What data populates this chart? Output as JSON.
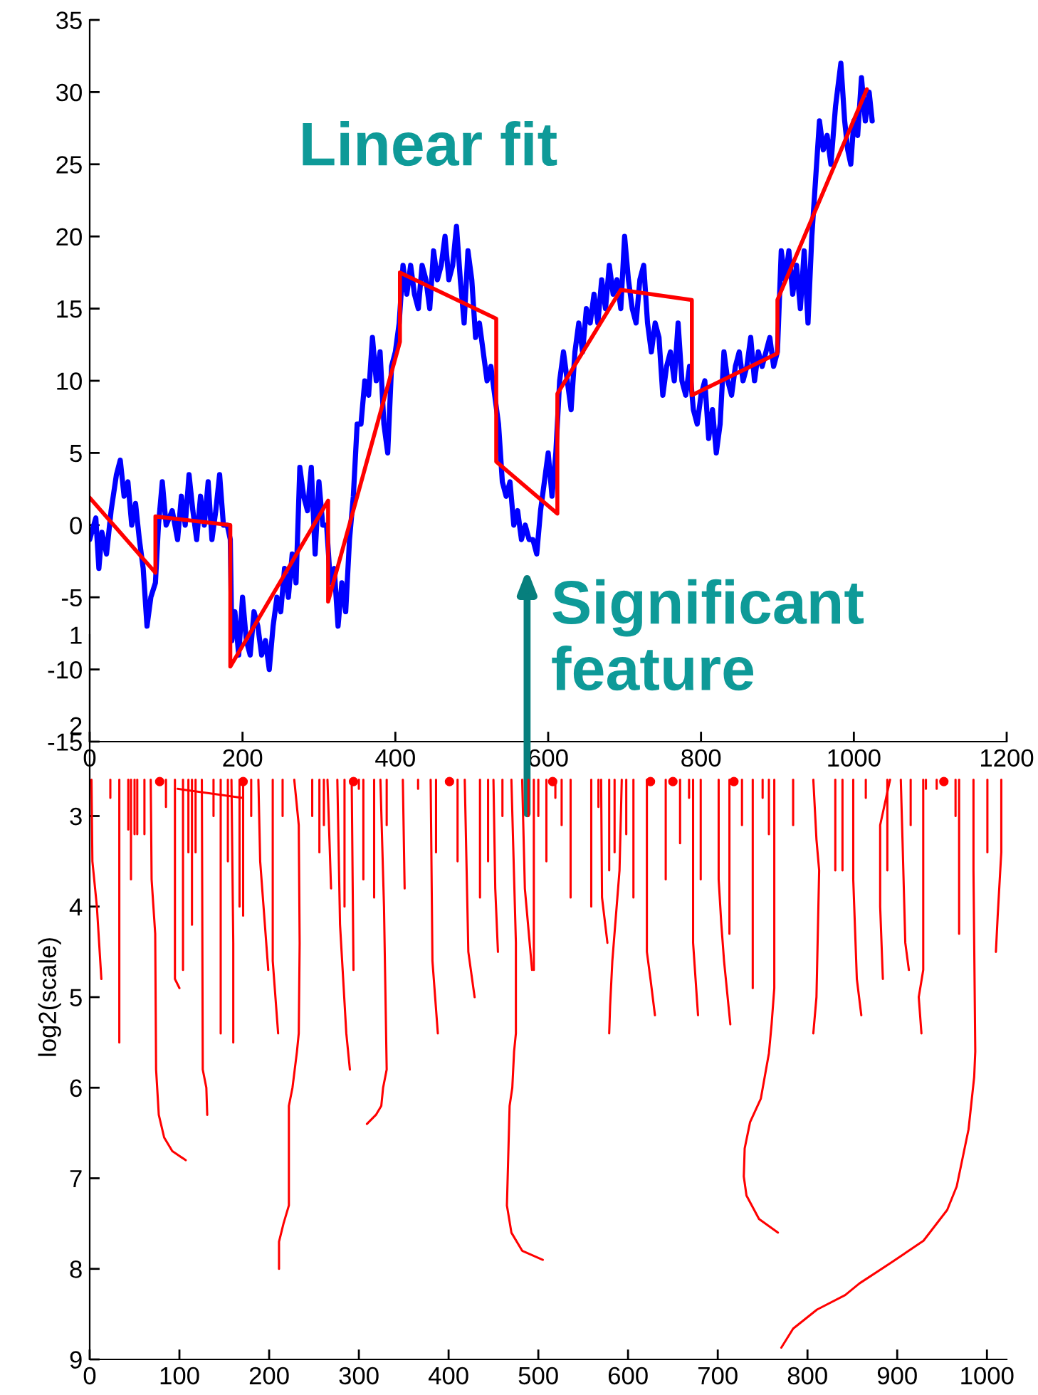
{
  "chart_data": [
    {
      "type": "line",
      "xlim": [
        0,
        1200
      ],
      "xticks": [
        0,
        200,
        400,
        600,
        800,
        1000,
        1200
      ],
      "ylim": [
        -15,
        35
      ],
      "yticks": [
        -15,
        -10,
        -5,
        0,
        5,
        10,
        15,
        20,
        25,
        30,
        35
      ],
      "annotations": [
        "Linear fit",
        "Significant\nfeature"
      ],
      "series": [
        {
          "color": "#0000ff",
          "x": [
            0,
            8,
            12,
            16,
            22,
            28,
            35,
            40,
            45,
            50,
            55,
            60,
            65,
            70,
            75,
            80,
            86,
            90,
            95,
            100,
            108,
            115,
            120,
            125,
            130,
            135,
            140,
            145,
            150,
            155,
            160,
            165,
            170,
            175,
            180,
            184,
            186,
            190,
            195,
            200,
            205,
            210,
            215,
            220,
            225,
            230,
            235,
            240,
            245,
            250,
            255,
            260,
            265,
            270,
            275,
            280,
            285,
            290,
            295,
            300,
            305,
            310,
            315,
            320,
            325,
            330,
            335,
            340,
            345,
            350,
            355,
            360,
            365,
            370,
            375,
            380,
            385,
            390,
            395,
            400,
            405,
            410,
            415,
            420,
            425,
            430,
            435,
            440,
            445,
            450,
            455,
            460,
            465,
            470,
            475,
            480,
            485,
            490,
            495,
            500,
            505,
            510,
            515,
            520,
            525,
            530,
            535,
            540,
            545,
            550,
            555,
            560,
            565,
            570,
            575,
            580,
            585,
            590,
            595,
            600,
            605,
            610,
            615,
            620,
            625,
            630,
            635,
            640,
            645,
            650,
            655,
            660,
            665,
            670,
            675,
            680,
            685,
            690,
            695,
            700,
            705,
            710,
            715,
            720,
            725,
            730,
            735,
            740,
            745,
            750,
            755,
            760,
            765,
            770,
            775,
            780,
            785,
            790,
            795,
            800,
            805,
            810,
            815,
            820,
            825,
            830,
            835,
            840,
            845,
            850,
            855,
            860,
            865,
            870,
            875,
            880,
            885,
            890,
            895,
            900,
            905,
            910,
            915,
            920,
            925,
            930,
            935,
            940,
            945,
            950,
            955,
            960,
            965,
            970,
            976,
            983,
            988,
            992,
            996,
            1000,
            1005,
            1010,
            1015,
            1020,
            1024
          ],
          "values": [
            -1,
            0.5,
            -3,
            -0.5,
            -2,
            1,
            3.5,
            4.5,
            2,
            3,
            0,
            1.5,
            -1,
            -3,
            -7,
            -5,
            -4,
            0,
            3,
            0,
            1,
            -1,
            2,
            0,
            3.5,
            1,
            -1,
            2,
            0,
            3,
            -1,
            1,
            3.5,
            0,
            0,
            -1,
            -8,
            -6,
            -9,
            -5,
            -8,
            -9,
            -6,
            -7,
            -9,
            -8,
            -10,
            -7,
            -5,
            -6,
            -3,
            -5,
            -2,
            -4,
            4,
            2,
            1,
            4,
            -2,
            3,
            0,
            0,
            -4,
            -3,
            -7,
            -4,
            -6,
            -1,
            2,
            7,
            7,
            10,
            9,
            13,
            10,
            12,
            7,
            5,
            11,
            12,
            14,
            18,
            16,
            18,
            16,
            15,
            18,
            17,
            15,
            19,
            17,
            18,
            20,
            17,
            18,
            20.7,
            17,
            14,
            19,
            17,
            13,
            14,
            12,
            10,
            11,
            9,
            7,
            3,
            2,
            3,
            0,
            1,
            -1,
            0,
            -1,
            -1,
            -2,
            1,
            3,
            5,
            2,
            5,
            10,
            12,
            10,
            8,
            12,
            14,
            12,
            15,
            14,
            16,
            14,
            17,
            15,
            18,
            16,
            17,
            15,
            20,
            17,
            15,
            14,
            17,
            18,
            14,
            12,
            14,
            13,
            9,
            11,
            12,
            10,
            14,
            10,
            9,
            11,
            8,
            7,
            9,
            10,
            6,
            8,
            5,
            7,
            12,
            10,
            9,
            11,
            12,
            10,
            11,
            13,
            10,
            12,
            11,
            12,
            13,
            11,
            12,
            19,
            17,
            19,
            16,
            18,
            15,
            19,
            14,
            20,
            24,
            28,
            26,
            27,
            25,
            29,
            32,
            28,
            26,
            25,
            28,
            27,
            31,
            28,
            30,
            28
          ]
        },
        {
          "color": "#ff0000",
          "x": [
            0,
            86,
            86,
            184,
            184,
            312,
            312,
            406,
            406,
            532,
            532,
            612,
            612,
            695,
            788,
            788,
            900,
            900,
            1017
          ],
          "values": [
            1.9,
            -3.3,
            0.6,
            0,
            -9.8,
            1.7,
            -5.3,
            12.7,
            17.5,
            14.3,
            4.4,
            0.8,
            9.1,
            16.3,
            15.6,
            9.0,
            11.9,
            15.6,
            30.2
          ]
        }
      ]
    },
    {
      "type": "line",
      "color": "#ff0000",
      "xlim": [
        0,
        1022
      ],
      "xticks": [
        0,
        100,
        200,
        300,
        400,
        500,
        600,
        700,
        800,
        900,
        1000
      ],
      "ylim": [
        9,
        1
      ],
      "yticks": [
        1,
        2,
        3,
        4,
        5,
        6,
        7,
        8,
        9
      ],
      "ylabel": "log2(scale)",
      "series": [
        {
          "x": [
            2,
            3,
            8,
            13
          ],
          "values": [
            2.6,
            3.5,
            4.0,
            4.8
          ]
        },
        {
          "x": [
            23,
            23
          ],
          "values": [
            2.6,
            2.8
          ]
        },
        {
          "x": [
            33,
            33
          ],
          "values": [
            2.6,
            5.5
          ]
        },
        {
          "x": [
            43,
            43
          ],
          "values": [
            2.6,
            3.15
          ]
        },
        {
          "x": [
            46,
            46
          ],
          "values": [
            2.6,
            3.7
          ]
        },
        {
          "x": [
            50,
            50
          ],
          "values": [
            2.6,
            3.2
          ]
        },
        {
          "x": [
            53,
            53
          ],
          "values": [
            2.6,
            3.2
          ]
        },
        {
          "x": [
            61,
            61
          ],
          "values": [
            2.6,
            3.2
          ]
        },
        {
          "x": [
            68,
            69,
            73,
            74,
            77,
            83,
            92,
            107
          ],
          "values": [
            2.6,
            3.7,
            4.3,
            5.8,
            6.3,
            6.55,
            6.7,
            6.8
          ]
        },
        {
          "x": [
            85,
            85
          ],
          "values": [
            2.6,
            2.9
          ]
        },
        {
          "x": [
            95,
            95,
            100
          ],
          "values": [
            2.6,
            4.8,
            4.9
          ]
        },
        {
          "x": [
            104,
            104
          ],
          "values": [
            2.6,
            4.7
          ]
        },
        {
          "x": [
            110,
            110
          ],
          "values": [
            2.6,
            3.4
          ]
        },
        {
          "x": [
            114,
            114
          ],
          "values": [
            2.6,
            4.2
          ]
        },
        {
          "x": [
            118,
            118
          ],
          "values": [
            2.6,
            3.4
          ]
        },
        {
          "x": [
            125,
            126,
            130,
            131
          ],
          "values": [
            2.6,
            5.8,
            6.0,
            6.3
          ]
        },
        {
          "x": [
            138,
            138
          ],
          "values": [
            2.6,
            3.0
          ]
        },
        {
          "x": [
            146,
            146
          ],
          "values": [
            2.6,
            5.4
          ]
        },
        {
          "x": [
            154,
            154
          ],
          "values": [
            2.6,
            3.5
          ]
        },
        {
          "x": [
            158,
            160,
            160
          ],
          "values": [
            2.6,
            4.4,
            5.5
          ]
        },
        {
          "x": [
            167,
            167
          ],
          "values": [
            2.6,
            4.0
          ]
        },
        {
          "x": [
            171,
            171
          ],
          "values": [
            2.6,
            4.1
          ]
        },
        {
          "x": [
            98,
            170
          ],
          "values": [
            2.7,
            2.8
          ]
        },
        {
          "x": [
            180,
            180
          ],
          "values": [
            2.6,
            3.0
          ]
        },
        {
          "x": [
            188,
            190,
            199
          ],
          "values": [
            2.6,
            3.5,
            4.7
          ]
        },
        {
          "x": [
            204,
            204,
            210
          ],
          "values": [
            2.6,
            4.6,
            5.4
          ]
        },
        {
          "x": [
            215,
            215
          ],
          "values": [
            2.6,
            3.0
          ]
        },
        {
          "x": [
            228,
            233,
            234,
            233,
            231,
            226,
            222,
            222,
            216,
            211,
            211
          ],
          "values": [
            2.6,
            3.1,
            4.4,
            5.4,
            5.6,
            6.0,
            6.2,
            7.3,
            7.5,
            7.7,
            8.0
          ]
        },
        {
          "x": [
            248,
            248
          ],
          "values": [
            2.6,
            3.0
          ]
        },
        {
          "x": [
            256,
            256
          ],
          "values": [
            2.6,
            3.4
          ]
        },
        {
          "x": [
            261,
            261
          ],
          "values": [
            2.6,
            3.1
          ]
        },
        {
          "x": [
            265,
            269
          ],
          "values": [
            2.6,
            3.8
          ]
        },
        {
          "x": [
            276,
            279,
            286,
            290
          ],
          "values": [
            2.6,
            4.2,
            5.4,
            5.8
          ]
        },
        {
          "x": [
            284,
            284
          ],
          "values": [
            2.6,
            4.0
          ]
        },
        {
          "x": [
            292,
            294
          ],
          "values": [
            2.6,
            4.7
          ]
        },
        {
          "x": [
            300,
            300
          ],
          "values": [
            2.6,
            2.7
          ]
        },
        {
          "x": [
            305,
            305
          ],
          "values": [
            2.6,
            3.7
          ]
        },
        {
          "x": [
            317,
            317
          ],
          "values": [
            2.6,
            3.9
          ]
        },
        {
          "x": [
            324,
            328,
            331,
            327,
            325,
            319,
            309
          ],
          "values": [
            2.6,
            4.0,
            5.8,
            6.0,
            6.2,
            6.3,
            6.4
          ]
        },
        {
          "x": [
            331,
            331
          ],
          "values": [
            2.6,
            3.1
          ]
        },
        {
          "x": [
            349,
            351
          ],
          "values": [
            2.6,
            3.8
          ]
        },
        {
          "x": [
            366,
            366
          ],
          "values": [
            2.6,
            2.7
          ]
        },
        {
          "x": [
            380,
            382,
            388
          ],
          "values": [
            2.6,
            4.6,
            5.4
          ]
        },
        {
          "x": [
            386,
            386
          ],
          "values": [
            2.6,
            3.4
          ]
        },
        {
          "x": [
            410,
            410
          ],
          "values": [
            2.6,
            3.5
          ]
        },
        {
          "x": [
            418,
            422,
            429
          ],
          "values": [
            2.6,
            4.5,
            5.0
          ]
        },
        {
          "x": [
            435,
            435
          ],
          "values": [
            2.6,
            3.9
          ]
        },
        {
          "x": [
            444,
            444
          ],
          "values": [
            2.6,
            3.5
          ]
        },
        {
          "x": [
            450,
            452,
            455
          ],
          "values": [
            2.6,
            3.8,
            4.5
          ]
        },
        {
          "x": [
            460,
            460
          ],
          "values": [
            2.6,
            3.0
          ]
        },
        {
          "x": [
            470,
            475,
            475,
            473,
            471,
            468,
            465,
            470,
            482,
            505
          ],
          "values": [
            2.6,
            4.4,
            5.4,
            5.6,
            6.0,
            6.2,
            7.3,
            7.6,
            7.8,
            7.9
          ]
        },
        {
          "x": [
            482,
            485,
            493
          ],
          "values": [
            2.6,
            3.8,
            4.7
          ]
        },
        {
          "x": [
            489,
            489
          ],
          "values": [
            2.6,
            3.0
          ]
        },
        {
          "x": [
            495,
            495
          ],
          "values": [
            2.6,
            4.7
          ]
        },
        {
          "x": [
            500,
            500
          ],
          "values": [
            2.6,
            3.0
          ]
        },
        {
          "x": [
            509,
            509
          ],
          "values": [
            2.6,
            3.5
          ]
        },
        {
          "x": [
            519,
            519
          ],
          "values": [
            2.6,
            2.8
          ]
        },
        {
          "x": [
            526,
            526
          ],
          "values": [
            2.6,
            3.1
          ]
        },
        {
          "x": [
            536,
            536
          ],
          "values": [
            2.6,
            3.9
          ]
        },
        {
          "x": [
            559,
            559
          ],
          "values": [
            2.6,
            4.0
          ]
        },
        {
          "x": [
            567,
            567
          ],
          "values": [
            2.6,
            2.9
          ]
        },
        {
          "x": [
            570,
            571,
            577
          ],
          "values": [
            2.6,
            3.9,
            4.4
          ]
        },
        {
          "x": [
            579,
            579
          ],
          "values": [
            2.6,
            3.6
          ]
        },
        {
          "x": [
            585,
            585
          ],
          "values": [
            2.6,
            3.4
          ]
        },
        {
          "x": [
            598,
            598
          ],
          "values": [
            2.6,
            3.2
          ]
        },
        {
          "x": [
            593,
            590.5,
            582.5,
            580,
            579
          ],
          "values": [
            2.6,
            3.6,
            4.6,
            5.1,
            5.4
          ]
        },
        {
          "x": [
            606,
            606
          ],
          "values": [
            2.6,
            3.9
          ]
        },
        {
          "x": [
            621,
            621,
            625,
            630
          ],
          "values": [
            2.6,
            4.5,
            4.8,
            5.2
          ]
        },
        {
          "x": [
            642,
            642
          ],
          "values": [
            2.6,
            3.7
          ]
        },
        {
          "x": [
            658,
            658
          ],
          "values": [
            2.6,
            3.3
          ]
        },
        {
          "x": [
            668,
            668
          ],
          "values": [
            2.6,
            2.8
          ]
        },
        {
          "x": [
            672.5,
            672.5,
            678
          ],
          "values": [
            2.6,
            4.4,
            5.2
          ]
        },
        {
          "x": [
            681,
            681
          ],
          "values": [
            2.6,
            3.7
          ]
        },
        {
          "x": [
            701,
            701,
            704,
            707,
            714
          ],
          "values": [
            2.6,
            3.7,
            4.2,
            4.6,
            5.3
          ]
        },
        {
          "x": [
            713,
            713
          ],
          "values": [
            2.6,
            4.3
          ]
        },
        {
          "x": [
            727,
            727
          ],
          "values": [
            2.6,
            3.1
          ]
        },
        {
          "x": [
            739,
            739
          ],
          "values": [
            2.6,
            4.9
          ]
        },
        {
          "x": [
            750,
            750
          ],
          "values": [
            2.6,
            2.8
          ]
        },
        {
          "x": [
            757,
            757
          ],
          "values": [
            2.6,
            3.2
          ]
        },
        {
          "x": [
            763,
            763,
            760,
            757,
            748,
            736,
            730,
            729,
            732,
            746,
            767
          ],
          "values": [
            2.6,
            4.9,
            5.3,
            5.62,
            6.12,
            6.38,
            6.67,
            6.98,
            7.19,
            7.45,
            7.6
          ]
        },
        {
          "x": [
            784,
            784
          ],
          "values": [
            2.6,
            3.1
          ]
        },
        {
          "x": [
            806.5,
            810,
            813,
            810,
            806.5
          ],
          "values": [
            2.6,
            3.26,
            3.6,
            5.0,
            5.4
          ]
        },
        {
          "x": [
            831,
            831
          ],
          "values": [
            2.6,
            3.6
          ]
        },
        {
          "x": [
            839,
            839
          ],
          "values": [
            2.6,
            3.6
          ]
        },
        {
          "x": [
            851,
            851,
            855,
            860
          ],
          "values": [
            2.6,
            3.7,
            4.8,
            5.2
          ]
        },
        {
          "x": [
            865,
            865
          ],
          "values": [
            2.6,
            2.8
          ]
        },
        {
          "x": [
            892,
            881,
            881,
            884
          ],
          "values": [
            2.6,
            3.1,
            4.0,
            4.8
          ]
        },
        {
          "x": [
            889,
            889
          ],
          "values": [
            2.6,
            3.6
          ]
        },
        {
          "x": [
            904,
            906,
            909,
            913
          ],
          "values": [
            2.6,
            3.3,
            4.4,
            4.7
          ]
        },
        {
          "x": [
            915,
            915
          ],
          "values": [
            2.6,
            3.1
          ]
        },
        {
          "x": [
            929,
            929,
            924,
            927
          ],
          "values": [
            2.6,
            4.7,
            5.0,
            5.4
          ]
        },
        {
          "x": [
            932,
            932
          ],
          "values": [
            2.6,
            2.7
          ]
        },
        {
          "x": [
            944,
            944
          ],
          "values": [
            2.6,
            2.7
          ]
        },
        {
          "x": [
            965,
            965
          ],
          "values": [
            2.6,
            3.0
          ]
        },
        {
          "x": [
            969,
            969
          ],
          "values": [
            2.6,
            4.3
          ]
        },
        {
          "x": [
            985,
            985,
            987,
            985.8,
            979.5,
            966.3,
            955.7,
            929.3,
            895,
            858,
            842,
            810.6,
            784,
            770.8
          ],
          "values": [
            2.6,
            3.6,
            5.6,
            5.88,
            6.46,
            7.09,
            7.35,
            7.69,
            7.92,
            8.16,
            8.29,
            8.45,
            8.66,
            8.87
          ]
        },
        {
          "x": [
            1000.5,
            1000.5
          ],
          "values": [
            2.6,
            3.4
          ]
        },
        {
          "x": [
            1016,
            1016,
            1012,
            1010
          ],
          "values": [
            2.6,
            3.4,
            4.1,
            4.5
          ]
        },
        {
          "type": "scatter",
          "marker": "circle",
          "x": [
            78,
            171,
            294,
            401,
            516,
            625,
            650,
            718,
            952
          ],
          "values": [
            2.62,
            2.62,
            2.62,
            2.62,
            2.62,
            2.62,
            2.62,
            2.62,
            2.62
          ]
        }
      ]
    }
  ]
}
